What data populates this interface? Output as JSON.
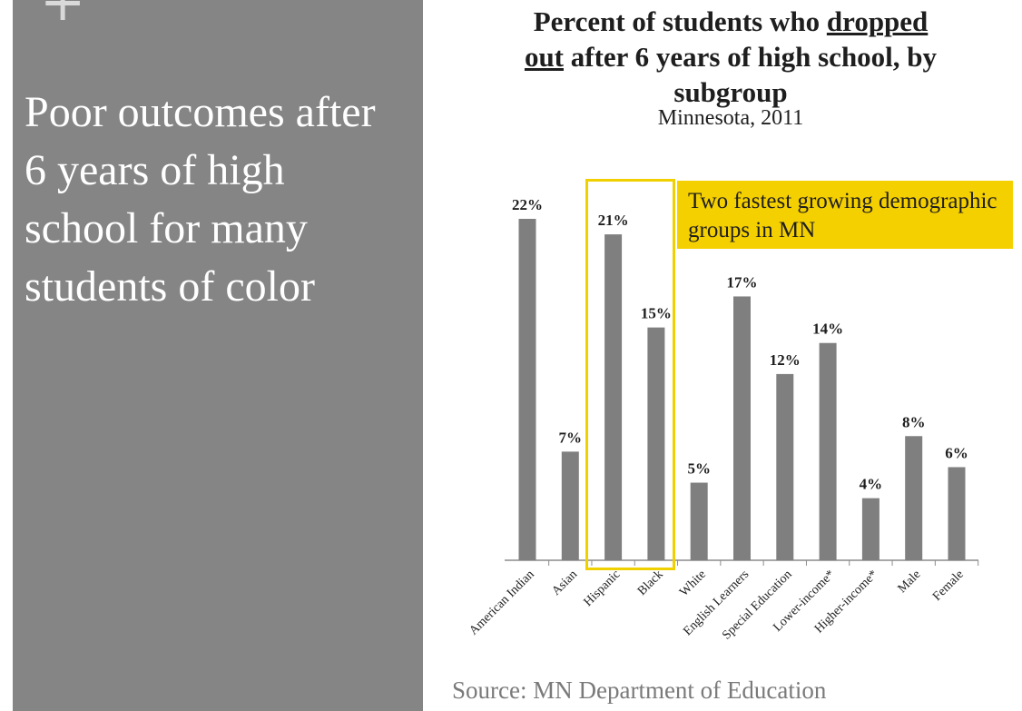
{
  "slide": {
    "plus_mark": "+",
    "heading": "Poor outcomes after 6 years of high school for many students of color"
  },
  "chart": {
    "title_line1_pre": "Percent of students who ",
    "title_line1_u": "dropped",
    "title_line2_u": "out",
    "title_line2_post": " after 6 years of high school, by",
    "title_line3": "subgroup",
    "subtitle": "Minnesota, 2011",
    "callout": "Two fastest growing demographic groups in MN"
  },
  "source": "Source: MN Department of Education",
  "colors": {
    "bar": "#7f7f7f",
    "highlight": "#f0d000",
    "callout_fill": "#f5d000",
    "panel": "#858585"
  },
  "chart_data": {
    "type": "bar",
    "title": "Percent of students who dropped out after 6 years of high school, by subgroup",
    "subtitle": "Minnesota, 2011",
    "categories": [
      "American Indian",
      "Asian",
      "Hispanic",
      "Black",
      "White",
      "English Learners",
      "Special Education",
      "Lower-income*",
      "Higher-income*",
      "Male",
      "Female"
    ],
    "values": [
      22,
      7,
      21,
      15,
      5,
      17,
      12,
      14,
      4,
      8,
      6
    ],
    "value_labels": [
      "22%",
      "7%",
      "21%",
      "15%",
      "5%",
      "17%",
      "12%",
      "14%",
      "4%",
      "8%",
      "6%"
    ],
    "unit": "%",
    "highlighted_categories": [
      "Hispanic",
      "Black"
    ],
    "xlabel": "",
    "ylabel": "",
    "ylim": [
      0,
      22
    ],
    "grid": false,
    "legend": "none"
  }
}
